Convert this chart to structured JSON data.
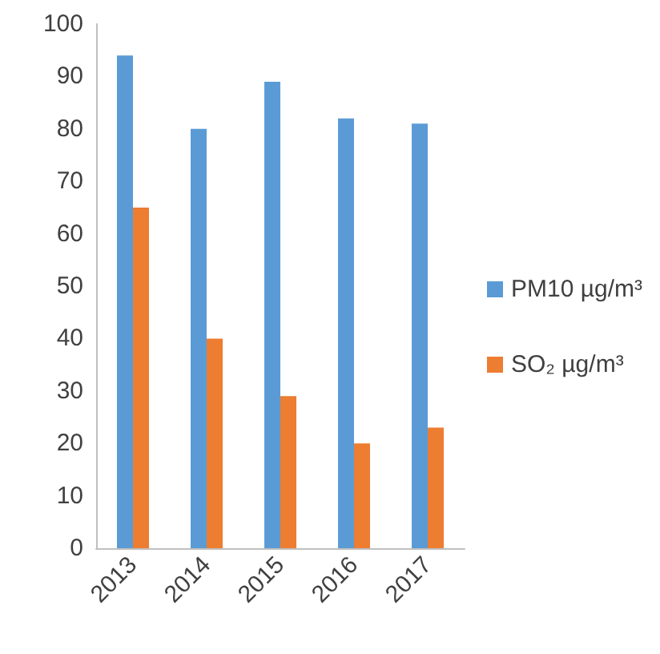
{
  "chart_data": {
    "type": "bar",
    "categories": [
      "2013",
      "2014",
      "2015",
      "2016",
      "2017"
    ],
    "series": [
      {
        "name": "PM10 µg/m³",
        "color": "#5b9bd5",
        "values": [
          94,
          80,
          89,
          82,
          81
        ]
      },
      {
        "name": "SO₂ µg/m³",
        "color": "#ed7d31",
        "values": [
          65,
          40,
          29,
          20,
          23
        ]
      }
    ],
    "ylim": [
      0,
      100
    ],
    "yticks": [
      0,
      10,
      20,
      30,
      40,
      50,
      60,
      70,
      80,
      90,
      100
    ],
    "grid": false,
    "legend": "right"
  }
}
